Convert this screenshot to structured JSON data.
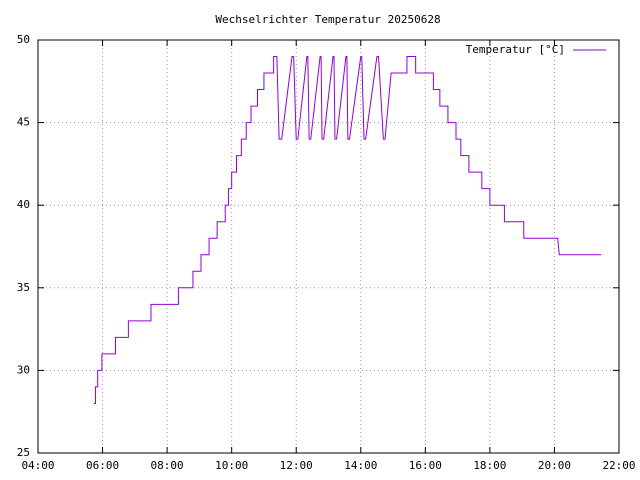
{
  "chart_data": {
    "type": "line",
    "title": "Wechselrichter Temperatur 20250628",
    "x": [
      5.73,
      5.78,
      5.78,
      5.85,
      5.85,
      5.98,
      5.98,
      6.4,
      6.4,
      6.8,
      6.8,
      7.5,
      7.5,
      8.35,
      8.35,
      8.8,
      8.8,
      9.05,
      9.05,
      9.3,
      9.3,
      9.55,
      9.55,
      9.8,
      9.8,
      9.9,
      9.9,
      10.0,
      10.0,
      10.15,
      10.15,
      10.3,
      10.3,
      10.45,
      10.45,
      10.6,
      10.6,
      10.8,
      10.8,
      11.0,
      11.0,
      11.3,
      11.3,
      11.4,
      11.47,
      11.55,
      11.87,
      11.92,
      12.0,
      12.05,
      12.33,
      12.36,
      12.4,
      12.45,
      12.74,
      12.77,
      12.8,
      12.85,
      13.14,
      13.17,
      13.2,
      13.25,
      13.54,
      13.57,
      13.6,
      13.65,
      14.0,
      14.03,
      14.1,
      14.15,
      14.5,
      14.55,
      14.7,
      14.75,
      14.94,
      15.43,
      15.43,
      15.7,
      15.7,
      16.25,
      16.25,
      16.45,
      16.45,
      16.7,
      16.7,
      16.95,
      16.95,
      17.1,
      17.1,
      17.35,
      17.35,
      17.75,
      17.75,
      18.0,
      18.0,
      18.45,
      18.45,
      19.05,
      19.05,
      20.1,
      20.15,
      21.45
    ],
    "series": [
      {
        "name": "Temperatur [°C]",
        "color": "#9400d3",
        "values": [
          28,
          28,
          29,
          29,
          30,
          30,
          31,
          31,
          32,
          32,
          33,
          33,
          34,
          34,
          35,
          35,
          36,
          36,
          37,
          37,
          38,
          38,
          39,
          39,
          40,
          40,
          41,
          41,
          42,
          42,
          43,
          43,
          44,
          44,
          45,
          45,
          46,
          46,
          47,
          47,
          48,
          48,
          49,
          49,
          44,
          44,
          49,
          49,
          44,
          44,
          49,
          49,
          44,
          44,
          49,
          49,
          44,
          44,
          49,
          49,
          44,
          44,
          49,
          49,
          44,
          44,
          49,
          49,
          44,
          44,
          49,
          49,
          44,
          44,
          48,
          48,
          49,
          49,
          48,
          48,
          47,
          47,
          46,
          46,
          45,
          45,
          44,
          44,
          43,
          43,
          42,
          42,
          41,
          41,
          40,
          40,
          39,
          39,
          38,
          38,
          37,
          37
        ]
      }
    ],
    "xlim": [
      4,
      22
    ],
    "xticks": [
      {
        "value": 4,
        "label": "04:00"
      },
      {
        "value": 6,
        "label": "06:00"
      },
      {
        "value": 8,
        "label": "08:00"
      },
      {
        "value": 10,
        "label": "10:00"
      },
      {
        "value": 12,
        "label": "12:00"
      },
      {
        "value": 14,
        "label": "14:00"
      },
      {
        "value": 16,
        "label": "16:00"
      },
      {
        "value": 18,
        "label": "18:00"
      },
      {
        "value": 20,
        "label": "20:00"
      },
      {
        "value": 22,
        "label": "22:00"
      }
    ],
    "ylim": [
      25,
      50
    ],
    "yticks": [
      25,
      30,
      35,
      40,
      45,
      50
    ],
    "grid": true,
    "legend": "top-right"
  }
}
